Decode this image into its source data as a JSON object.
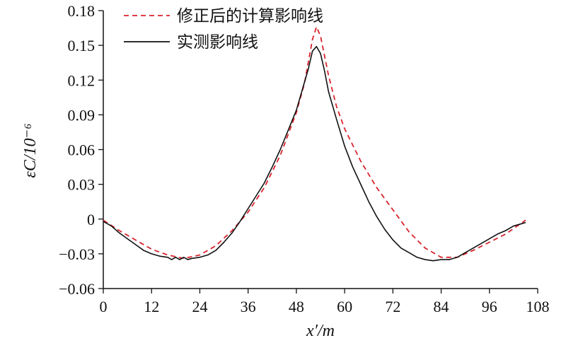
{
  "chart_data": {
    "type": "line",
    "xlabel": "x′/m",
    "ylabel": "εC/10⁻⁶",
    "xlim": [
      0,
      108
    ],
    "ylim": [
      -0.06,
      0.18
    ],
    "xticks": [
      0,
      12,
      24,
      36,
      48,
      60,
      72,
      84,
      96,
      108
    ],
    "xtick_labels": [
      "0",
      "12",
      "24",
      "36",
      "48",
      "60",
      "72",
      "84",
      "96",
      "108"
    ],
    "yticks": [
      -0.06,
      -0.03,
      0,
      0.03,
      0.06,
      0.09,
      0.12,
      0.15,
      0.18
    ],
    "ytick_labels": [
      "−0.06",
      "−0.03",
      "0",
      "0.03",
      "0.06",
      "0.09",
      "0.12",
      "0.15",
      "0.18"
    ],
    "grid": false,
    "legend_position": "top-right",
    "colors": {
      "corrected": "#d9232d",
      "measured": "#111111"
    },
    "series": [
      {
        "name": "修正后的计算影响线",
        "style": "dashed",
        "x": [
          0,
          4,
          8,
          12,
          16,
          20,
          24,
          28,
          32,
          36,
          40,
          44,
          48,
          50,
          52,
          53,
          54,
          56,
          58,
          60,
          64,
          68,
          72,
          76,
          80,
          84,
          88,
          92,
          96,
          100,
          105
        ],
        "y": [
          -0.001,
          -0.01,
          -0.018,
          -0.026,
          -0.031,
          -0.034,
          -0.031,
          -0.023,
          -0.01,
          0.006,
          0.027,
          0.055,
          0.092,
          0.117,
          0.155,
          0.166,
          0.158,
          0.124,
          0.097,
          0.078,
          0.05,
          0.027,
          0.008,
          -0.011,
          -0.025,
          -0.033,
          -0.033,
          -0.027,
          -0.02,
          -0.013,
          -0.001
        ]
      },
      {
        "name": "实测影响线",
        "style": "solid",
        "x": [
          0,
          2,
          4,
          6,
          8,
          10,
          12,
          14,
          16,
          17,
          18,
          19,
          20,
          21,
          22,
          24,
          26,
          28,
          30,
          32,
          34,
          36,
          38,
          40,
          42,
          44,
          46,
          48,
          50,
          51,
          52,
          53,
          54,
          55,
          56,
          58,
          60,
          62,
          64,
          66,
          68,
          70,
          72,
          74,
          76,
          78,
          80,
          82,
          84,
          86,
          88,
          90,
          92,
          94,
          96,
          98,
          100,
          102,
          104,
          105
        ],
        "y": [
          -0.002,
          -0.006,
          -0.012,
          -0.017,
          -0.022,
          -0.027,
          -0.03,
          -0.032,
          -0.033,
          -0.035,
          -0.033,
          -0.035,
          -0.033,
          -0.035,
          -0.034,
          -0.033,
          -0.031,
          -0.027,
          -0.02,
          -0.012,
          -0.002,
          0.009,
          0.02,
          0.031,
          0.045,
          0.06,
          0.077,
          0.094,
          0.118,
          0.13,
          0.145,
          0.149,
          0.143,
          0.128,
          0.11,
          0.086,
          0.063,
          0.045,
          0.03,
          0.015,
          0.002,
          -0.009,
          -0.018,
          -0.025,
          -0.029,
          -0.033,
          -0.035,
          -0.036,
          -0.035,
          -0.035,
          -0.033,
          -0.029,
          -0.025,
          -0.021,
          -0.017,
          -0.013,
          -0.01,
          -0.006,
          -0.004,
          -0.003
        ]
      }
    ]
  }
}
